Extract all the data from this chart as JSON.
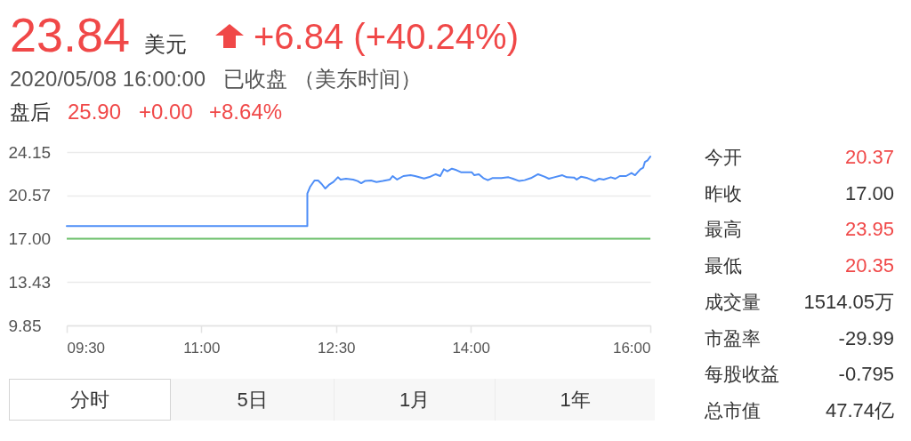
{
  "chart_data": {
    "type": "line",
    "title": "23.84",
    "subtitle": "2020/05/08 16:00:00   已收盘 （美东时间）",
    "annotations": [
      "美元",
      "+6.84 (+40.24%)",
      "盘后",
      "25.90",
      "+0.00",
      "+8.64%",
      "今开",
      "20.37",
      "昨收",
      "17.00",
      "最高",
      "23.95",
      "最低",
      "20.35",
      "成交量",
      "1514.05万",
      "市盈率",
      "-29.99",
      "每股收益",
      "-0.795",
      "总市值",
      "47.74亿",
      "分时",
      "5日",
      "1月",
      "1年"
    ],
    "xlim": [
      9.5,
      16
    ],
    "xticks": [
      {
        "value": 9.5,
        "label": "09:30"
      },
      {
        "value": 11,
        "label": "11:00"
      },
      {
        "value": 12.5,
        "label": "12:30"
      },
      {
        "value": 14,
        "label": "14:00"
      },
      {
        "value": 16,
        "label": "16:00"
      }
    ],
    "ylim": [
      9.85,
      24.15
    ],
    "yticks": [
      9.85,
      13.43,
      {
        "value": 17,
        "label": "17.00"
      },
      20.57,
      24.15
    ],
    "grid": "y",
    "ref_lines": [
      {
        "axis": "y",
        "value": 17,
        "color": "#6abf69"
      }
    ],
    "series": [
      {
        "color": "#4e8ef7",
        "x": [
          9.5,
          12.18,
          12.18,
          12.21,
          12.26,
          12.3,
          12.34,
          12.38,
          12.42,
          12.47,
          12.52,
          12.55,
          12.61,
          12.69,
          12.74,
          12.78,
          12.82,
          12.89,
          12.95,
          13.02,
          13.1,
          13.13,
          13.18,
          13.25,
          13.33,
          13.38,
          13.48,
          13.55,
          13.61,
          13.66,
          13.7,
          13.74,
          13.79,
          13.84,
          13.89,
          14.01,
          14.04,
          14.09,
          14.14,
          14.19,
          14.24,
          14.34,
          14.42,
          14.47,
          14.54,
          14.6,
          14.67,
          14.75,
          14.82,
          14.87,
          14.93,
          15.02,
          15.07,
          15.15,
          15.18,
          15.23,
          15.3,
          15.38,
          15.43,
          15.48,
          15.56,
          15.61,
          15.66,
          15.73,
          15.79,
          15.83,
          15.86,
          15.89,
          15.92,
          15.94,
          15.97,
          16.0
        ],
        "values": [
          18.04,
          18.04,
          20.73,
          21.27,
          21.8,
          21.8,
          21.51,
          21.14,
          21.44,
          21.68,
          22.07,
          21.88,
          21.95,
          21.88,
          21.76,
          21.58,
          21.76,
          21.8,
          21.68,
          21.76,
          21.88,
          22.17,
          21.88,
          22.17,
          22.24,
          22.17,
          21.97,
          22.12,
          22.32,
          22.17,
          22.73,
          22.56,
          22.78,
          22.66,
          22.49,
          22.49,
          22.24,
          22.32,
          22.0,
          21.83,
          22.0,
          22.0,
          22.07,
          21.95,
          21.76,
          21.83,
          22.0,
          22.32,
          22.12,
          21.95,
          22.07,
          22.24,
          22.07,
          22.05,
          21.88,
          22.12,
          22.0,
          21.76,
          21.95,
          21.88,
          22.07,
          21.95,
          22.17,
          22.17,
          22.42,
          22.24,
          22.49,
          22.73,
          22.85,
          23.34,
          23.47,
          23.78
        ]
      }
    ]
  }
}
